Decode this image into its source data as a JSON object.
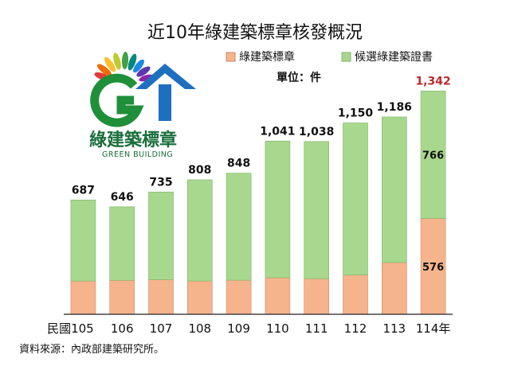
{
  "chart_data": {
    "type": "bar",
    "stacked": true,
    "title": "近10年綠建築標章核發概況",
    "unit": "單位：件",
    "x_prefix": "民國",
    "x_suffix": "年",
    "categories": [
      "105",
      "106",
      "107",
      "108",
      "109",
      "110",
      "111",
      "112",
      "113",
      "114"
    ],
    "series": [
      {
        "name": "綠建築標章",
        "color": "#f6b48c",
        "values": [
          200,
          204,
          208,
          200,
          205,
          220,
          214,
          236,
          311,
          576
        ]
      },
      {
        "name": "候選綠建築證書",
        "color": "#a8d88d",
        "values": [
          487,
          442,
          527,
          608,
          643,
          821,
          824,
          914,
          875,
          766
        ]
      }
    ],
    "totals": [
      "687",
      "646",
      "735",
      "808",
      "848",
      "1,041",
      "1,038",
      "1,150",
      "1,186",
      "1,342"
    ],
    "highlight_total_color": "#c0282d",
    "inner_labels": {
      "index": 9,
      "bottom": "576",
      "top": "766"
    },
    "ylim": [
      0,
      1420
    ],
    "grid": false,
    "legend_position": "top-right"
  },
  "logo": {
    "name_zh": "綠建築標章",
    "name_en": "GREEN BUILDING"
  },
  "source_note": "資料來源：內政部建築研究所。"
}
